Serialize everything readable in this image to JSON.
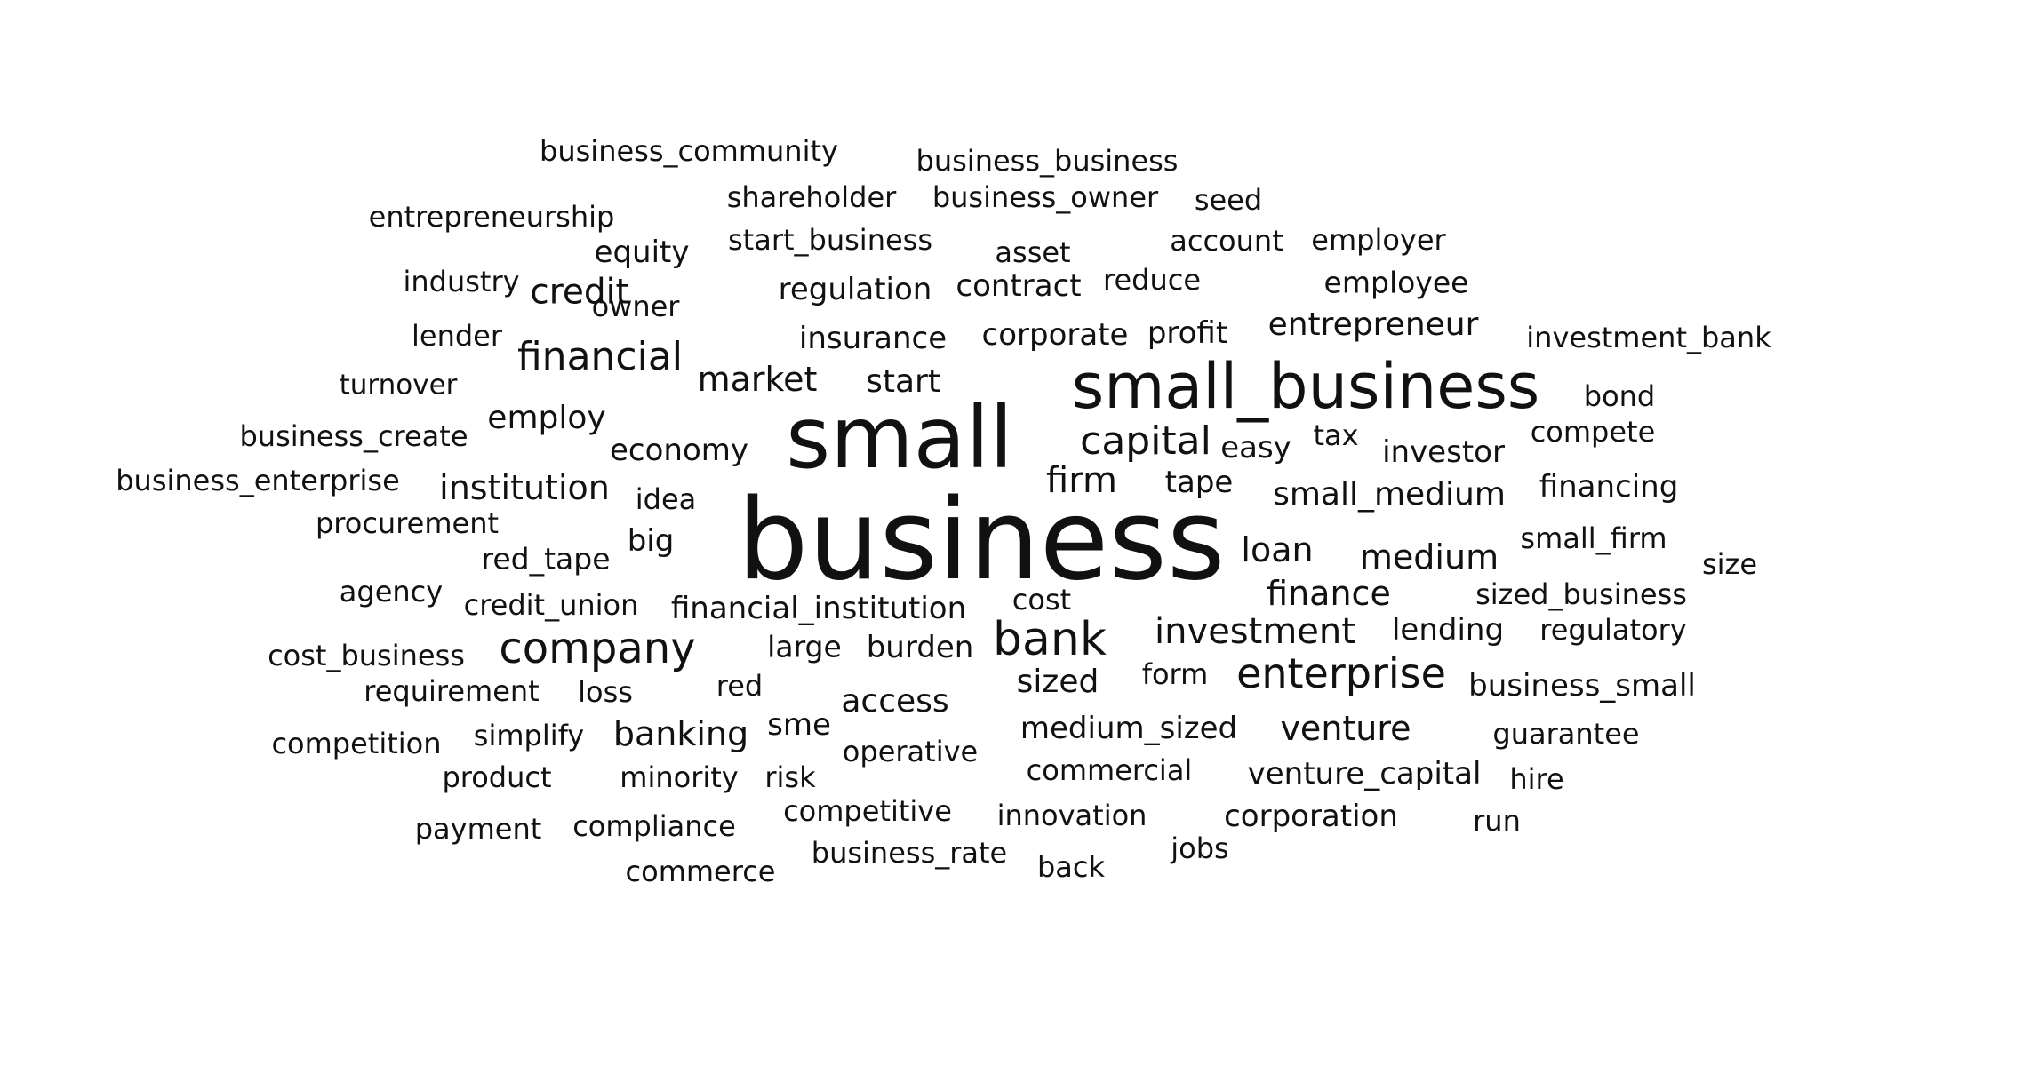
{
  "cloud": {
    "words": [
      "business_community",
      "business_business",
      "shareholder",
      "business_owner",
      "seed",
      "entrepreneurship",
      "start_business",
      "asset",
      "account",
      "employer",
      "equity",
      "industry",
      "credit",
      "regulation",
      "contract",
      "reduce",
      "employee",
      "owner",
      "lender",
      "insurance",
      "corporate",
      "profit",
      "entrepreneur",
      "investment_bank",
      "financial",
      "turnover",
      "market",
      "start",
      "small_business",
      "bond",
      "business_create",
      "employ",
      "small",
      "capital",
      "tax",
      "compete",
      "economy",
      "easy",
      "investor",
      "business_enterprise",
      "institution",
      "firm",
      "tape",
      "small_medium",
      "financing",
      "idea",
      "procurement",
      "business",
      "big",
      "small_firm",
      "loan",
      "red_tape",
      "medium",
      "size",
      "agency",
      "finance",
      "credit_union",
      "financial_institution",
      "cost",
      "sized_business",
      "bank",
      "investment",
      "lending",
      "regulatory",
      "cost_business",
      "company",
      "large",
      "burden",
      "requirement",
      "loss",
      "red",
      "form",
      "enterprise",
      "business_small",
      "sized",
      "access",
      "sme",
      "venture",
      "competition",
      "simplify",
      "banking",
      "medium_sized",
      "guarantee",
      "operative",
      "commercial",
      "venture_capital",
      "product",
      "minority",
      "risk",
      "hire",
      "competitive",
      "payment",
      "compliance",
      "innovation",
      "corporation",
      "run",
      "business_rate",
      "jobs",
      "commerce",
      "back"
    ]
  }
}
